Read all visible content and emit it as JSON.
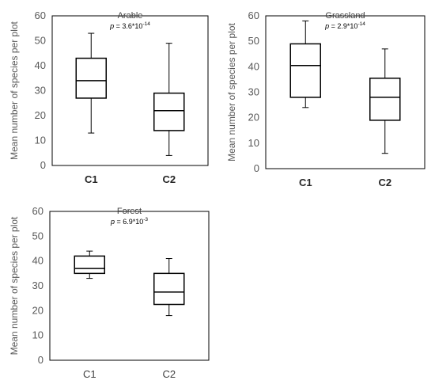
{
  "chart_data": [
    {
      "type": "boxplot",
      "title": "Arable",
      "annotation": {
        "p_label": "p",
        "p_value_base": " = 3.6*10",
        "p_value_exp": "-14"
      },
      "ylabel": "Mean number of  species per plot",
      "ylim": [
        0,
        60
      ],
      "yticks": [
        "0",
        "10",
        "20",
        "30",
        "40",
        "50",
        "60"
      ],
      "category_style": "bold",
      "categories": [
        "C1",
        "C2"
      ],
      "boxes": [
        {
          "category": "C1",
          "min": 13,
          "q1": 27,
          "median": 34,
          "q3": 43,
          "max": 53
        },
        {
          "category": "C2",
          "min": 4,
          "q1": 14,
          "median": 22,
          "q3": 29,
          "max": 49
        }
      ]
    },
    {
      "type": "boxplot",
      "title": "Grassland",
      "annotation": {
        "p_label": "p",
        "p_value_base": " = 2.9*10",
        "p_value_exp": "-14"
      },
      "ylabel": "Mean number of  species per plot",
      "ylim": [
        0,
        60
      ],
      "yticks": [
        "0",
        "10",
        "20",
        "30",
        "40",
        "50",
        "60"
      ],
      "category_style": "bold",
      "categories": [
        "C1",
        "C2"
      ],
      "boxes": [
        {
          "category": "C1",
          "min": 24,
          "q1": 28,
          "median": 40.5,
          "q3": 49,
          "max": 58
        },
        {
          "category": "C2",
          "min": 6,
          "q1": 19,
          "median": 28,
          "q3": 35.5,
          "max": 47
        }
      ]
    },
    {
      "type": "boxplot",
      "title": "Forest",
      "annotation": {
        "p_label": "p",
        "p_value_base": " = 6.9*10",
        "p_value_exp": "-3"
      },
      "ylabel": "Mean number of  species per plot",
      "ylim": [
        0,
        60
      ],
      "yticks": [
        "0",
        "10",
        "20",
        "30",
        "40",
        "50",
        "60"
      ],
      "category_style": "normal",
      "categories": [
        "C1",
        "C2"
      ],
      "boxes": [
        {
          "category": "C1",
          "min": 33,
          "q1": 35,
          "median": 37,
          "q3": 42,
          "max": 44
        },
        {
          "category": "C2",
          "min": 18,
          "q1": 22.5,
          "median": 27.5,
          "q3": 35,
          "max": 41
        }
      ]
    }
  ]
}
